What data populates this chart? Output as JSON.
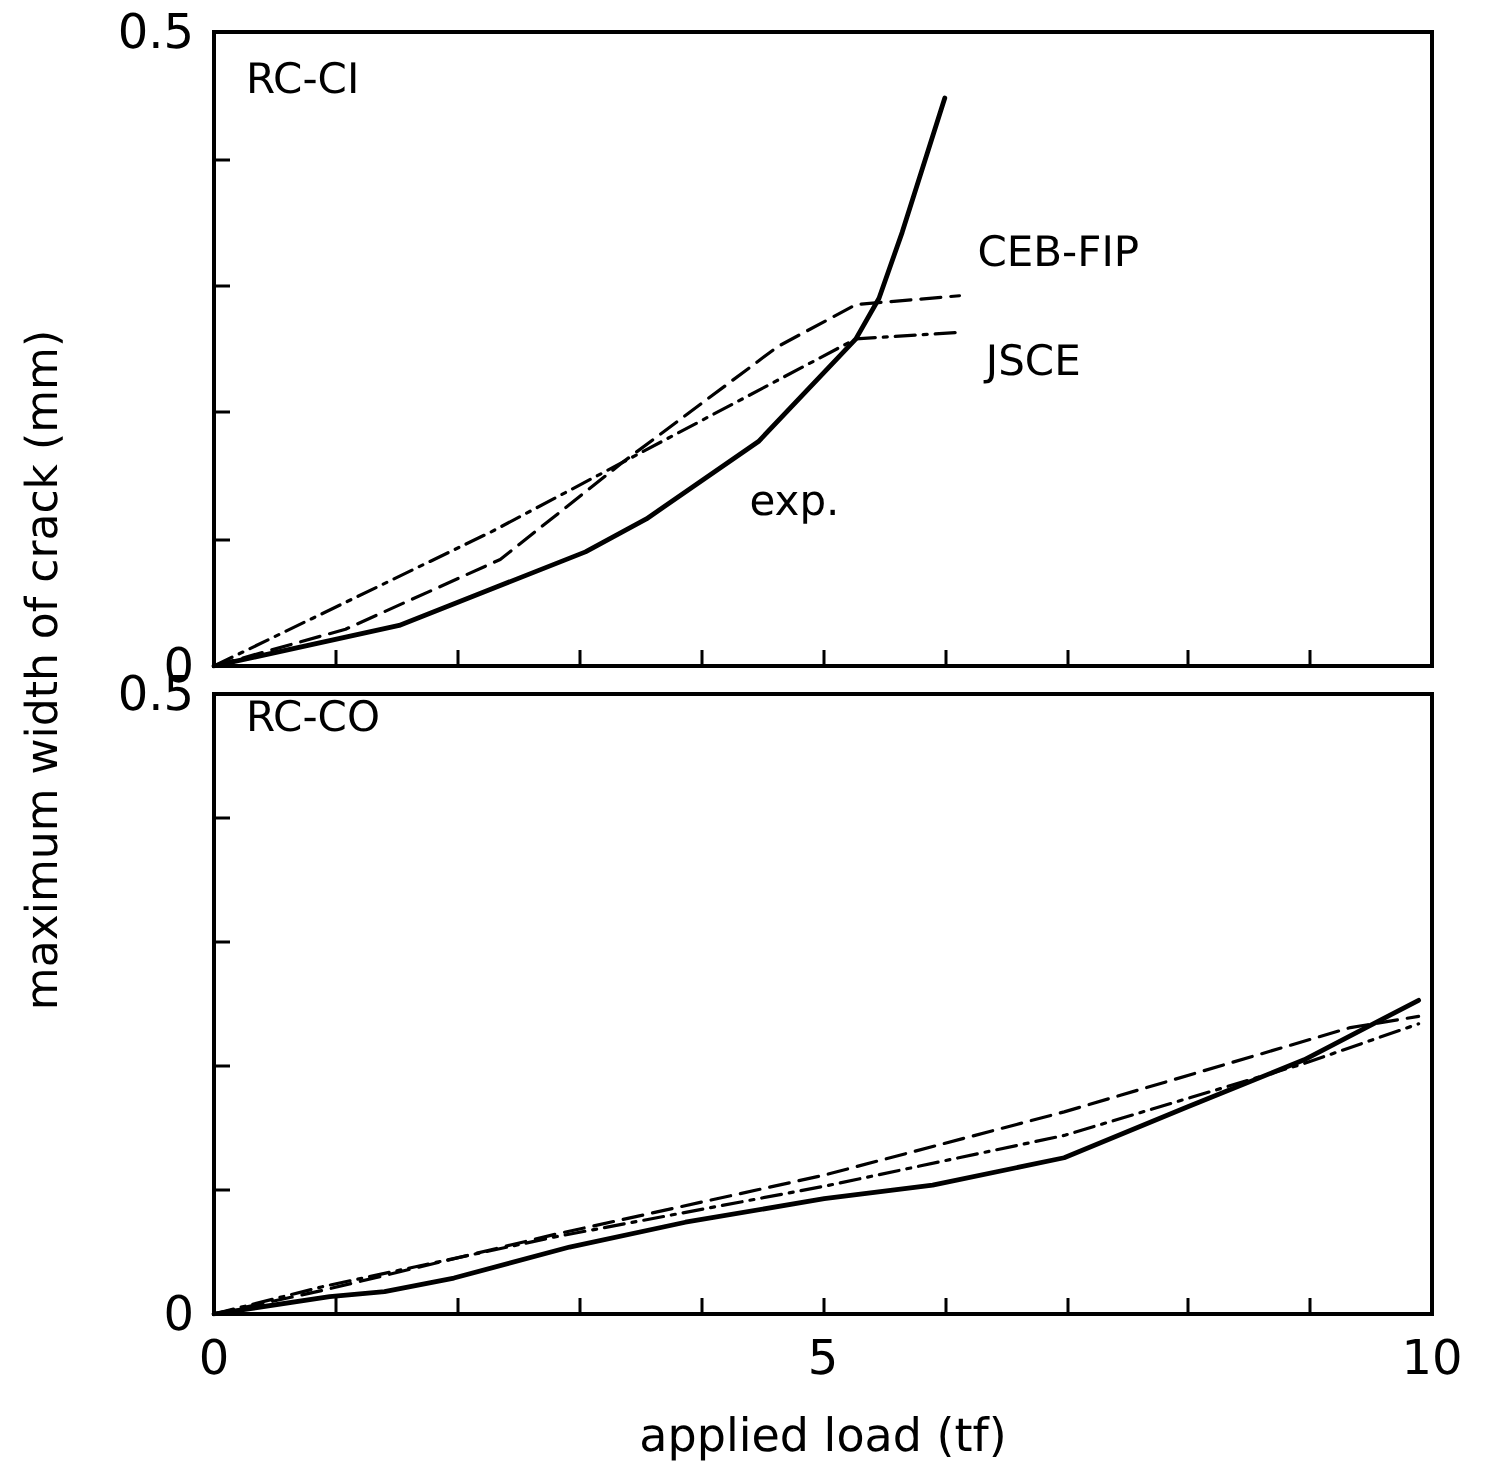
{
  "chart_data": [
    {
      "type": "line",
      "title": "RC-CI",
      "ylabel": "maximum width of crack (mm)",
      "tick_labels": "y",
      "xlim": [
        0,
        10
      ],
      "xticks": [
        {
          "value": 0,
          "label": null
        },
        1,
        2,
        3,
        4,
        5,
        6,
        7,
        8,
        9,
        10
      ],
      "ylim": [
        0,
        0.5
      ],
      "yticks": [
        {
          "value": 0,
          "label": "0"
        },
        {
          "value": 0.1,
          "label": null
        },
        {
          "value": 0.2,
          "label": null
        },
        {
          "value": 0.3,
          "label": null
        },
        {
          "value": 0.4,
          "label": null
        },
        0.5
      ],
      "grid": false,
      "legend": false,
      "marker": "none",
      "series": [
        {
          "name": "exp.",
          "color": "#000000",
          "line_style": "solid",
          "x": [
            0,
            1.52,
            3.05,
            3.55,
            4.47,
            5.27,
            5.46,
            5.65,
            6.0
          ],
          "values": [
            0,
            0.032,
            0.09,
            0.116,
            0.177,
            0.258,
            0.29,
            0.342,
            0.448
          ]
        },
        {
          "name": "CEB-FIP",
          "color": "#000000",
          "line_style": "dashed",
          "x": [
            0,
            1.08,
            2.35,
            3.36,
            4.63,
            5.27,
            6.12
          ],
          "values": [
            0,
            0.029,
            0.084,
            0.161,
            0.252,
            0.285,
            0.292
          ]
        },
        {
          "name": "JSCE",
          "color": "#000000",
          "line_style": "dashdot",
          "x": [
            0,
            2.28,
            5.27,
            6.09
          ],
          "values": [
            0,
            0.106,
            0.258,
            0.263
          ]
        }
      ]
    },
    {
      "type": "line",
      "title": "RC-CO",
      "xlabel": "applied load (tf)",
      "xlim": [
        0,
        10
      ],
      "xticks": [
        {
          "value": 0,
          "label": "0"
        },
        {
          "value": 1,
          "label": null
        },
        {
          "value": 2,
          "label": null
        },
        {
          "value": 3,
          "label": null
        },
        {
          "value": 4,
          "label": null
        },
        5,
        {
          "value": 6,
          "label": null
        },
        {
          "value": 7,
          "label": null
        },
        {
          "value": 8,
          "label": null
        },
        {
          "value": 9,
          "label": null
        },
        10
      ],
      "ylim": [
        0,
        0.5
      ],
      "yticks": [
        {
          "value": 0,
          "label": "0"
        },
        {
          "value": 0.1,
          "label": null
        },
        {
          "value": 0.2,
          "label": null
        },
        {
          "value": 0.3,
          "label": null
        },
        {
          "value": 0.4,
          "label": null
        },
        0.5
      ],
      "grid": false,
      "legend": false,
      "marker": "none",
      "series": [
        {
          "color": "#000000",
          "line_style": "solid",
          "x": [
            0,
            0.95,
            1.4,
            1.97,
            2.92,
            3.87,
            5.01,
            5.9,
            6.98,
            7.99,
            8.95,
            9.89
          ],
          "values": [
            0,
            0.014,
            0.018,
            0.029,
            0.054,
            0.074,
            0.093,
            0.104,
            0.126,
            0.167,
            0.205,
            0.253
          ]
        },
        {
          "color": "#000000",
          "line_style": "dashed",
          "x": [
            0,
            0.89,
            2.79,
            5.01,
            6.98,
            9.33,
            9.89
          ],
          "values": [
            0,
            0.019,
            0.064,
            0.112,
            0.163,
            0.231,
            0.24
          ]
        },
        {
          "color": "#000000",
          "line_style": "dashdot",
          "x": [
            0,
            0.89,
            2.79,
            5.01,
            6.98,
            8.95,
            9.89
          ],
          "values": [
            0,
            0.022,
            0.062,
            0.103,
            0.144,
            0.202,
            0.234
          ]
        }
      ]
    }
  ]
}
